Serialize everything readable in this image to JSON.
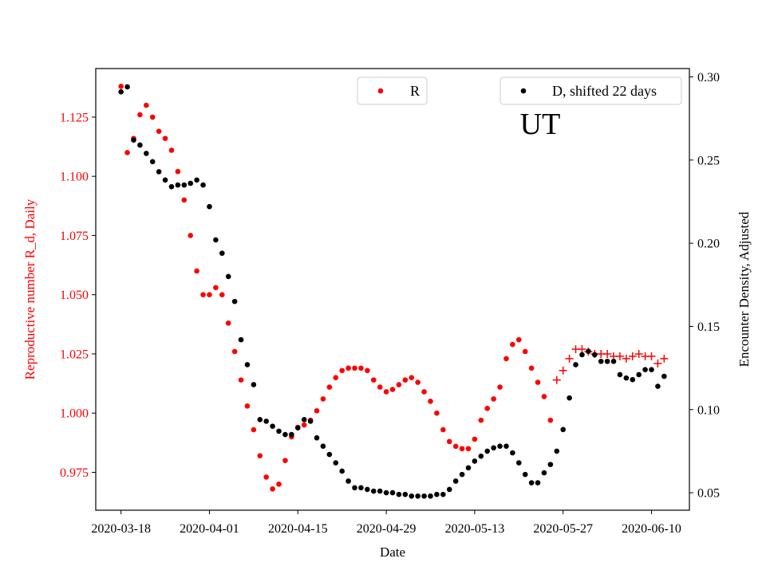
{
  "chart_data": {
    "type": "scatter",
    "title": "",
    "annotation": "UT",
    "xlabel": "Date",
    "ylabel_left": "Reproductive number R_d, Daily",
    "ylabel_right": "Encounter Density, Adjusted",
    "xlim": [
      "2020-03-14",
      "2020-06-16"
    ],
    "ylim_left": [
      0.959,
      1.1455
    ],
    "ylim_right": [
      0.0395,
      0.305
    ],
    "x_ticks": [
      "2020-03-18",
      "2020-04-01",
      "2020-04-15",
      "2020-04-29",
      "2020-05-13",
      "2020-05-27",
      "2020-06-10"
    ],
    "y_ticks_left": [
      "0.975",
      "1.000",
      "1.025",
      "1.050",
      "1.075",
      "1.100",
      "1.125"
    ],
    "y_ticks_right": [
      "0.05",
      "0.10",
      "0.15",
      "0.20",
      "0.25",
      "0.30"
    ],
    "grid": false,
    "legend": [
      {
        "label": "R",
        "placement": "top-center",
        "color": "#ff0000",
        "marker": "dot"
      },
      {
        "label": "D, shifted 22 days",
        "placement": "top-right",
        "color": "#000000",
        "marker": "dot"
      }
    ],
    "series": [
      {
        "name": "R",
        "axis": "left",
        "color": "#ff0000",
        "marker": "dot",
        "x": [
          "2020-03-18",
          "2020-03-19",
          "2020-03-20",
          "2020-03-21",
          "2020-03-22",
          "2020-03-23",
          "2020-03-24",
          "2020-03-25",
          "2020-03-26",
          "2020-03-27",
          "2020-03-28",
          "2020-03-29",
          "2020-03-30",
          "2020-03-31",
          "2020-04-01",
          "2020-04-02",
          "2020-04-03",
          "2020-04-04",
          "2020-04-05",
          "2020-04-06",
          "2020-04-07",
          "2020-04-08",
          "2020-04-09",
          "2020-04-10",
          "2020-04-11",
          "2020-04-12",
          "2020-04-13",
          "2020-04-14",
          "2020-04-15",
          "2020-04-16",
          "2020-04-17",
          "2020-04-18",
          "2020-04-19",
          "2020-04-20",
          "2020-04-21",
          "2020-04-22",
          "2020-04-23",
          "2020-04-24",
          "2020-04-25",
          "2020-04-26",
          "2020-04-27",
          "2020-04-28",
          "2020-04-29",
          "2020-04-30",
          "2020-05-01",
          "2020-05-02",
          "2020-05-03",
          "2020-05-04",
          "2020-05-05",
          "2020-05-06",
          "2020-05-07",
          "2020-05-08",
          "2020-05-09",
          "2020-05-10",
          "2020-05-11",
          "2020-05-12",
          "2020-05-13",
          "2020-05-14",
          "2020-05-15",
          "2020-05-16",
          "2020-05-17",
          "2020-05-18",
          "2020-05-19",
          "2020-05-20",
          "2020-05-21",
          "2020-05-22",
          "2020-05-23",
          "2020-05-24",
          "2020-05-25"
        ],
        "y": [
          1.138,
          1.11,
          1.116,
          1.126,
          1.13,
          1.125,
          1.119,
          1.116,
          1.111,
          1.102,
          1.09,
          1.075,
          1.06,
          1.05,
          1.05,
          1.053,
          1.05,
          1.038,
          1.026,
          1.014,
          1.003,
          0.993,
          0.982,
          0.973,
          0.968,
          0.97,
          0.98,
          0.99,
          0.994,
          0.995,
          0.997,
          1.001,
          1.006,
          1.011,
          1.015,
          1.018,
          1.019,
          1.019,
          1.019,
          1.018,
          1.014,
          1.011,
          1.009,
          1.01,
          1.012,
          1.014,
          1.015,
          1.013,
          1.009,
          1.005,
          1.0,
          0.993,
          0.988,
          0.986,
          0.985,
          0.985,
          0.989,
          0.997,
          1.002,
          1.006,
          1.011,
          1.023,
          1.029,
          1.031,
          1.026,
          1.019,
          1.013,
          1.007,
          0.997
        ]
      },
      {
        "name": "R",
        "axis": "left",
        "color": "#ff0000",
        "marker": "plus",
        "x": [
          "2020-05-26",
          "2020-05-27",
          "2020-05-28",
          "2020-05-29",
          "2020-05-30",
          "2020-05-31",
          "2020-06-01",
          "2020-06-02",
          "2020-06-03",
          "2020-06-04",
          "2020-06-05",
          "2020-06-06",
          "2020-06-07",
          "2020-06-08",
          "2020-06-09",
          "2020-06-10",
          "2020-06-11",
          "2020-06-12"
        ],
        "y": [
          1.014,
          1.018,
          1.023,
          1.027,
          1.027,
          1.026,
          1.025,
          1.025,
          1.025,
          1.024,
          1.024,
          1.023,
          1.024,
          1.025,
          1.024,
          1.024,
          1.021,
          1.023
        ]
      },
      {
        "name": "D, shifted 22 days",
        "axis": "right",
        "color": "#000000",
        "marker": "dot",
        "x": [
          "2020-03-18",
          "2020-03-19",
          "2020-03-20",
          "2020-03-21",
          "2020-03-22",
          "2020-03-23",
          "2020-03-24",
          "2020-03-25",
          "2020-03-26",
          "2020-03-27",
          "2020-03-28",
          "2020-03-29",
          "2020-03-30",
          "2020-03-31",
          "2020-04-01",
          "2020-04-02",
          "2020-04-03",
          "2020-04-04",
          "2020-04-05",
          "2020-04-06",
          "2020-04-07",
          "2020-04-08",
          "2020-04-09",
          "2020-04-10",
          "2020-04-11",
          "2020-04-12",
          "2020-04-13",
          "2020-04-14",
          "2020-04-15",
          "2020-04-16",
          "2020-04-17",
          "2020-04-18",
          "2020-04-19",
          "2020-04-20",
          "2020-04-21",
          "2020-04-22",
          "2020-04-23",
          "2020-04-24",
          "2020-04-25",
          "2020-04-26",
          "2020-04-27",
          "2020-04-28",
          "2020-04-29",
          "2020-04-30",
          "2020-05-01",
          "2020-05-02",
          "2020-05-03",
          "2020-05-04",
          "2020-05-05",
          "2020-05-06",
          "2020-05-07",
          "2020-05-08",
          "2020-05-09",
          "2020-05-10",
          "2020-05-11",
          "2020-05-12",
          "2020-05-13",
          "2020-05-14",
          "2020-05-15",
          "2020-05-16",
          "2020-05-17",
          "2020-05-18",
          "2020-05-19",
          "2020-05-20",
          "2020-05-21",
          "2020-05-22",
          "2020-05-23",
          "2020-05-24",
          "2020-05-25",
          "2020-05-26",
          "2020-05-27",
          "2020-05-28",
          "2020-05-29",
          "2020-05-30",
          "2020-05-31",
          "2020-06-01",
          "2020-06-02",
          "2020-06-03",
          "2020-06-04",
          "2020-06-05",
          "2020-06-06",
          "2020-06-07",
          "2020-06-08",
          "2020-06-09",
          "2020-06-10",
          "2020-06-11",
          "2020-06-12"
        ],
        "y": [
          0.291,
          0.294,
          0.262,
          0.259,
          0.254,
          0.249,
          0.243,
          0.238,
          0.234,
          0.235,
          0.235,
          0.236,
          0.238,
          0.235,
          0.222,
          0.202,
          0.194,
          0.18,
          0.165,
          0.142,
          0.127,
          0.115,
          0.094,
          0.093,
          0.09,
          0.087,
          0.085,
          0.085,
          0.089,
          0.094,
          0.093,
          0.083,
          0.078,
          0.073,
          0.068,
          0.063,
          0.057,
          0.053,
          0.053,
          0.052,
          0.051,
          0.051,
          0.05,
          0.05,
          0.049,
          0.049,
          0.048,
          0.048,
          0.048,
          0.048,
          0.049,
          0.049,
          0.052,
          0.057,
          0.061,
          0.065,
          0.069,
          0.072,
          0.075,
          0.077,
          0.078,
          0.078,
          0.074,
          0.068,
          0.061,
          0.056,
          0.056,
          0.062,
          0.067,
          0.075,
          0.088,
          0.107,
          0.127,
          0.133,
          0.135,
          0.133,
          0.129,
          0.129,
          0.129,
          0.121,
          0.119,
          0.118,
          0.121,
          0.124,
          0.124,
          0.114,
          0.12
        ]
      }
    ]
  }
}
